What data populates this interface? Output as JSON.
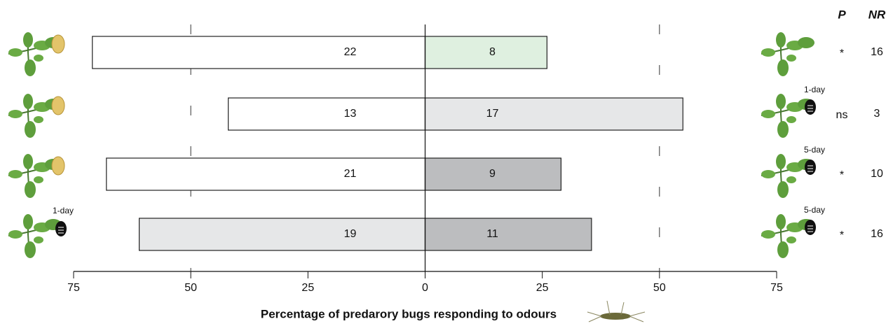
{
  "chart_data": {
    "type": "diverging-bar",
    "x_label": "Percentage of predarory bugs responding to odours",
    "xlim": [
      -75,
      75
    ],
    "xticks": [
      {
        "value": -75,
        "label": "75"
      },
      {
        "value": -50,
        "label": "50"
      },
      {
        "value": -25,
        "label": "25"
      },
      0,
      25,
      50,
      75
    ],
    "dashed_lines": [
      -50,
      50
    ],
    "series": [
      {
        "values": [
          -71,
          -42,
          -68,
          -61
        ],
        "counts": [
          22,
          13,
          21,
          19
        ],
        "colors": [
          "#ffffff",
          "#ffffff",
          "#ffffff",
          "#e6e7e8"
        ]
      },
      {
        "values": [
          26,
          55,
          29,
          35.5
        ],
        "counts": [
          8,
          17,
          9,
          11
        ],
        "colors": [
          "#dff0e0",
          "#e6e7e8",
          "#bcbdbf",
          "#bcbdbf"
        ]
      }
    ],
    "left_labels": [
      null,
      null,
      null,
      "1-day"
    ],
    "right_labels": [
      null,
      "1-day",
      "5-day",
      "5-day"
    ],
    "p_header": "P",
    "nr_header": "NR",
    "p_values": [
      "*",
      "ns",
      "*",
      "*"
    ],
    "nr_values": [
      16,
      3,
      10,
      16
    ]
  }
}
